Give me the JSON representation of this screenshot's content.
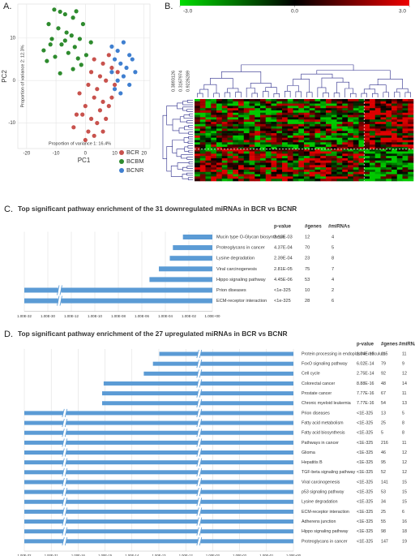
{
  "chart_data": [
    {
      "type": "scatter",
      "panel_label": "A.",
      "xlabel": "PC1",
      "ylabel": "PC2",
      "annotations": [
        "Proportion of variance 1: 16.4%",
        "Proportion of variance 2: 12.3%"
      ],
      "xlim": [
        -23,
        22
      ],
      "ylim": [
        -16,
        18
      ],
      "xticks": [
        -20,
        -10,
        0,
        10,
        20
      ],
      "yticks": [
        -10,
        0,
        10
      ],
      "grid": true,
      "legend": "bottom right",
      "series": [
        {
          "name": "BCR",
          "color": "#c8524d",
          "x": [
            3,
            6,
            8,
            2,
            5,
            9,
            1,
            4,
            7,
            10,
            -2,
            3,
            6,
            0,
            5,
            8,
            -1,
            2,
            4,
            7,
            -4,
            1,
            3,
            6,
            -3,
            0,
            9,
            11
          ],
          "y": [
            5,
            4,
            6,
            2,
            1,
            3,
            -1,
            -2,
            0,
            -1,
            -3,
            -4,
            -5,
            -6,
            -7,
            -6,
            -8,
            -9,
            -10,
            -9,
            -11,
            -12,
            -13,
            -12,
            -8,
            -14,
            -4,
            2
          ]
        },
        {
          "name": "BCBM",
          "color": "#2e8b2e",
          "x": [
            -10.6,
            -8.6,
            -6.9,
            -4.2,
            -12.5,
            -9.2,
            -6.4,
            -4.7,
            -11.4,
            -8.1,
            -3.6,
            -14.2,
            -5.8,
            -10.3,
            -2.5,
            -1.4,
            -13.1,
            -4.2,
            -8.6,
            0.3,
            1.9,
            -0.8,
            -3.1,
            -11.9,
            -6.9,
            -1.9
          ],
          "y": [
            16.7,
            16.2,
            15.6,
            14.8,
            13.3,
            12.3,
            11.3,
            10.6,
            9.8,
            8.5,
            7.9,
            7.1,
            6.5,
            5.6,
            5.2,
            3.7,
            4.6,
            2.7,
            1.7,
            6.0,
            9.0,
            13.3,
            16.3,
            8.5,
            9.4,
            9.8
          ]
        },
        {
          "name": "BCNR",
          "color": "#3f7fd0",
          "x": [
            9,
            11,
            13,
            15,
            10,
            12,
            14,
            16,
            9,
            13,
            17,
            11,
            15,
            12,
            10
          ],
          "y": [
            8,
            7,
            9,
            6,
            5,
            4,
            3,
            5,
            2,
            1,
            2,
            0,
            -1,
            -3,
            -2
          ]
        }
      ]
    },
    {
      "type": "heatmap",
      "panel_label": "B.",
      "colorbar": {
        "colors": [
          "#00dd00",
          "#000000",
          "#ee0000"
        ],
        "lim": [
          -3,
          3
        ],
        "ticks": [
          {
            "value": -3,
            "label": "-3.0"
          },
          {
            "value": 0,
            "label": "0.0"
          },
          {
            "value": 3,
            "label": "3.0"
          }
        ]
      },
      "dendrogram_labels": [
        "0.3893126",
        "0.3167974",
        "0.9226289"
      ]
    },
    {
      "type": "bar",
      "panel_label": "C.",
      "title": "Top significant pathway enrichment of the 31 downregulated miRNAs in BCR vs BCNR",
      "columns": [
        "p-value",
        "#genes",
        "#miRNAs"
      ],
      "color": "#5b9bd5",
      "log": true,
      "grid": true,
      "categories": [
        "Mucin type O-Glycan biosynthesis",
        "Proteoglycans in cancer",
        "Lysine degradation",
        "Viral carcinogenesis",
        "Hippo signaling pathway",
        "Prion diseases",
        "ECM-receptor interaction"
      ],
      "values": [
        0.00313,
        0.000437,
        0.000239,
        2.81e-05,
        4.45e-06,
        0,
        0
      ],
      "value_labels": [
        "3.13E-03",
        "4.37E-04",
        "2.39E-04",
        "2.81E-05",
        "4.45E-06",
        "<1e-325",
        "<1e-325"
      ],
      "genes": [
        12,
        70,
        23,
        75,
        53,
        10,
        28
      ],
      "mirnas": [
        4,
        5,
        8,
        7,
        4,
        2,
        6
      ],
      "xlim": [
        1e-32,
        1
      ],
      "xticks": [
        {
          "value": 1e-32,
          "label": "1.00E-32"
        },
        {
          "value": 1e-30,
          "label": "1.00E-30"
        },
        {
          "value": 1e-12,
          "label": "1.00E-12"
        },
        {
          "value": 1e-10,
          "label": "1.00E-10"
        },
        {
          "value": 1e-08,
          "label": "1.00E-08"
        },
        {
          "value": 1e-06,
          "label": "1.00E-06"
        },
        {
          "value": 0.0001,
          "label": "1.00E-04"
        },
        {
          "value": 0.01,
          "label": "1.00E-02"
        },
        {
          "value": 1,
          "label": "1.00E+00"
        }
      ],
      "axis_breaks": [
        [
          1e-30,
          1e-12
        ]
      ]
    },
    {
      "type": "bar",
      "panel_label": "D.",
      "title": "Top significant pathway enrichment of the 27 upregulated miRNAs in BCR vs BCNR",
      "columns": [
        "p-value",
        "#genes",
        "#miRNAs"
      ],
      "color": "#5b9bd5",
      "log": true,
      "grid": true,
      "categories": [
        "Protein processing in endoplasmic reticulum",
        "FoxO signaling pathway",
        "Cell cycle",
        "Colorectal cancer",
        "Prostate cancer",
        "Chronic myeloid leukemia",
        "Prion diseases",
        "Fatty acid metabolism",
        "Fatty acid biosynthesis",
        "Pathways in cancer",
        "Glioma",
        "Hepatitis B",
        "TGF-beta signaling pathway",
        "Viral carcinogenesis",
        "p53 signaling pathway",
        "Lysine degradation",
        "ECM-receptor interaction",
        "Adherens junction",
        "Hippo signaling pathway",
        "Proteoglycans in cancer"
      ],
      "values": [
        1.04e-13,
        6.02e-14,
        2.75e-14,
        8.88e-16,
        7.77e-16,
        7.77e-16,
        0,
        0,
        0,
        0,
        0,
        0,
        0,
        0,
        0,
        0,
        0,
        0,
        0,
        0
      ],
      "value_labels": [
        "1.04E-13",
        "6.02E-14",
        "2.75E-14",
        "8.88E-16",
        "7.77E-16",
        "7.77E-16",
        "<1E-325",
        "<1E-325",
        "<1E-325",
        "<1E-325",
        "<1E-325",
        "<1E-325",
        "<1E-325",
        "<1E-325",
        "<1E-325",
        "<1E-325",
        "<1E-325",
        "<1E-325",
        "<1E-325",
        "<1E-325"
      ],
      "genes": [
        115,
        79,
        92,
        48,
        67,
        54,
        13,
        25,
        5,
        216,
        46,
        95,
        52,
        141,
        53,
        34,
        25,
        55,
        98,
        147
      ],
      "mirnas": [
        11,
        9,
        12,
        14,
        11,
        13,
        5,
        8,
        8,
        11,
        12,
        12,
        12,
        15,
        15,
        15,
        6,
        16,
        18,
        19
      ],
      "xlim": [
        1e-32,
        1
      ],
      "xticks": [
        {
          "value": 1e-32,
          "label": "1.00E-32"
        },
        {
          "value": 1e-31,
          "label": "1.00E-31"
        },
        {
          "value": 1e-16,
          "label": "1.00E-16"
        },
        {
          "value": 1e-15,
          "label": "1.00E-15"
        },
        {
          "value": 1e-14,
          "label": "1.00E-14"
        },
        {
          "value": 1e-13,
          "label": "1.00E-13"
        },
        {
          "value": 1e-12,
          "label": "1.00E-12"
        },
        {
          "value": 0.001,
          "label": "1.00E-03"
        },
        {
          "value": 0.01,
          "label": "1.00E-02"
        },
        {
          "value": 0.1,
          "label": "1.00E-01"
        },
        {
          "value": 1,
          "label": "1.00E+00"
        }
      ],
      "axis_breaks": [
        [
          1e-31,
          1e-16
        ],
        [
          1e-12,
          0.001
        ]
      ]
    }
  ]
}
